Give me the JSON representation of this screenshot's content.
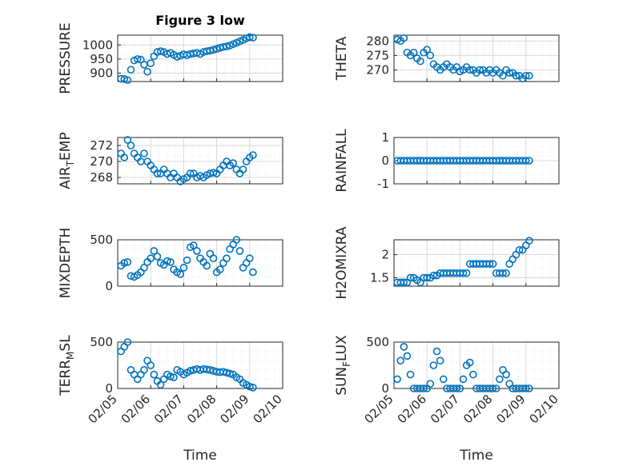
{
  "figure": {
    "title": "Figure 3 low",
    "xlabel": "Time",
    "x_ticks": [
      "02/05",
      "02/06",
      "02/07",
      "02/08",
      "02/09",
      "02/10"
    ],
    "x_range": [
      "02/05",
      "02/10"
    ],
    "marker": "open-circle",
    "series_color": "#0072BD",
    "grid_color": "#d9d9d9"
  },
  "chart_data": [
    {
      "type": "scatter",
      "id": "pressure",
      "ylabel": "PRESSURE",
      "ylim": [
        870,
        1035
      ],
      "yticks": [
        900,
        950,
        1000
      ],
      "grid": true,
      "x": [
        0.1,
        0.2,
        0.3,
        0.4,
        0.5,
        0.6,
        0.7,
        0.8,
        0.9,
        1.0,
        1.1,
        1.2,
        1.3,
        1.4,
        1.5,
        1.6,
        1.7,
        1.8,
        1.9,
        2.0,
        2.1,
        2.2,
        2.3,
        2.4,
        2.5,
        2.6,
        2.7,
        2.8,
        2.9,
        3.0,
        3.1,
        3.2,
        3.3,
        3.4,
        3.5,
        3.6,
        3.7,
        3.8,
        3.9,
        4.0,
        4.1
      ],
      "y": [
        880,
        879,
        875,
        912,
        945,
        950,
        948,
        930,
        905,
        935,
        960,
        975,
        978,
        975,
        968,
        972,
        965,
        958,
        962,
        967,
        964,
        968,
        970,
        972,
        968,
        975,
        978,
        980,
        983,
        986,
        990,
        993,
        995,
        998,
        1003,
        1008,
        1013,
        1018,
        1024,
        1028,
        1026
      ]
    },
    {
      "type": "scatter",
      "id": "theta",
      "ylabel": "THETA",
      "ylim": [
        266,
        282
      ],
      "yticks": [
        270,
        275,
        280
      ],
      "grid": true,
      "x": [
        0.1,
        0.2,
        0.3,
        0.4,
        0.5,
        0.6,
        0.7,
        0.8,
        0.9,
        1.0,
        1.1,
        1.2,
        1.3,
        1.4,
        1.5,
        1.6,
        1.7,
        1.8,
        1.9,
        2.0,
        2.1,
        2.2,
        2.3,
        2.4,
        2.5,
        2.6,
        2.7,
        2.8,
        2.9,
        3.0,
        3.1,
        3.2,
        3.3,
        3.4,
        3.5,
        3.6,
        3.7,
        3.8,
        3.9,
        4.0,
        4.1
      ],
      "y": [
        280.5,
        280,
        281,
        276,
        275,
        276,
        274,
        273,
        276,
        277,
        275,
        272,
        271,
        270,
        271,
        272,
        271,
        270,
        271,
        269.5,
        270,
        271,
        270,
        270,
        269,
        270,
        270,
        269,
        270,
        269,
        270,
        269,
        268,
        270,
        269,
        269,
        268,
        268,
        267,
        268,
        268
      ]
    },
    {
      "type": "scatter",
      "id": "air-temp",
      "ylabel": "AIR_TEMP",
      "ylabel_parts": [
        "AIR",
        "T",
        "EMP"
      ],
      "ylim": [
        267.2,
        273
      ],
      "yticks": [
        268,
        270,
        272
      ],
      "grid": true,
      "x": [
        0.1,
        0.2,
        0.3,
        0.4,
        0.5,
        0.6,
        0.7,
        0.8,
        0.9,
        1.0,
        1.1,
        1.2,
        1.3,
        1.4,
        1.5,
        1.6,
        1.7,
        1.8,
        1.9,
        2.0,
        2.1,
        2.2,
        2.3,
        2.4,
        2.5,
        2.6,
        2.7,
        2.8,
        2.9,
        3.0,
        3.1,
        3.2,
        3.3,
        3.4,
        3.5,
        3.6,
        3.7,
        3.8,
        3.9,
        4.0,
        4.1
      ],
      "y": [
        271,
        270.5,
        272.7,
        272,
        271,
        270.5,
        270,
        271,
        270,
        269.5,
        269,
        268.5,
        268.5,
        269,
        268.5,
        268,
        268.5,
        268,
        267.5,
        267.8,
        268,
        268.5,
        268.5,
        268,
        268.2,
        268,
        268.3,
        268.5,
        268.6,
        268.5,
        269,
        269.5,
        270,
        269.5,
        269.8,
        269,
        268.5,
        269,
        270,
        270.5,
        270.8
      ]
    },
    {
      "type": "scatter",
      "id": "rainfall",
      "ylabel": "RAINFALL",
      "ylim": [
        -1,
        1
      ],
      "yticks": [
        -1,
        0,
        1
      ],
      "grid": true,
      "x": [
        0.1,
        0.2,
        0.3,
        0.4,
        0.5,
        0.6,
        0.7,
        0.8,
        0.9,
        1.0,
        1.1,
        1.2,
        1.3,
        1.4,
        1.5,
        1.6,
        1.7,
        1.8,
        1.9,
        2.0,
        2.1,
        2.2,
        2.3,
        2.4,
        2.5,
        2.6,
        2.7,
        2.8,
        2.9,
        3.0,
        3.1,
        3.2,
        3.3,
        3.4,
        3.5,
        3.6,
        3.7,
        3.8,
        3.9,
        4.0,
        4.1
      ],
      "y": [
        0,
        0,
        0,
        0,
        0,
        0,
        0,
        0,
        0,
        0,
        0,
        0,
        0,
        0,
        0,
        0,
        0,
        0,
        0,
        0,
        0,
        0,
        0,
        0,
        0,
        0,
        0,
        0,
        0,
        0,
        0,
        0,
        0,
        0,
        0,
        0,
        0,
        0,
        0,
        0,
        0
      ]
    },
    {
      "type": "scatter",
      "id": "mixdepth",
      "ylabel": "MIXDEPTH",
      "ylim": [
        0,
        500
      ],
      "yticks": [
        0,
        500
      ],
      "grid": true,
      "x": [
        0.1,
        0.2,
        0.3,
        0.4,
        0.5,
        0.6,
        0.7,
        0.8,
        0.9,
        1.0,
        1.1,
        1.2,
        1.3,
        1.4,
        1.5,
        1.6,
        1.7,
        1.8,
        1.9,
        2.0,
        2.1,
        2.2,
        2.3,
        2.4,
        2.5,
        2.6,
        2.7,
        2.8,
        2.9,
        3.0,
        3.1,
        3.2,
        3.3,
        3.4,
        3.5,
        3.6,
        3.7,
        3.8,
        3.9,
        4.0,
        4.1
      ],
      "y": [
        220,
        250,
        260,
        110,
        100,
        120,
        150,
        200,
        260,
        300,
        380,
        320,
        250,
        230,
        270,
        260,
        180,
        150,
        130,
        200,
        280,
        420,
        440,
        380,
        300,
        260,
        220,
        350,
        300,
        150,
        180,
        250,
        300,
        400,
        450,
        500,
        380,
        200,
        250,
        300,
        150
      ]
    },
    {
      "type": "scatter",
      "id": "h2omixra",
      "ylabel": "H2OMIXRA",
      "ylim": [
        1.32,
        2.32
      ],
      "yticks": [
        1.5,
        2
      ],
      "grid": true,
      "x": [
        0.1,
        0.2,
        0.3,
        0.4,
        0.5,
        0.6,
        0.7,
        0.8,
        0.9,
        1.0,
        1.1,
        1.2,
        1.3,
        1.4,
        1.5,
        1.6,
        1.7,
        1.8,
        1.9,
        2.0,
        2.1,
        2.2,
        2.3,
        2.4,
        2.5,
        2.6,
        2.7,
        2.8,
        2.9,
        3.0,
        3.1,
        3.2,
        3.3,
        3.4,
        3.5,
        3.6,
        3.7,
        3.8,
        3.9,
        4.0,
        4.1
      ],
      "y": [
        1.4,
        1.4,
        1.4,
        1.4,
        1.5,
        1.5,
        1.45,
        1.4,
        1.5,
        1.5,
        1.5,
        1.55,
        1.55,
        1.6,
        1.6,
        1.6,
        1.6,
        1.6,
        1.6,
        1.6,
        1.6,
        1.6,
        1.8,
        1.8,
        1.8,
        1.8,
        1.8,
        1.8,
        1.8,
        1.8,
        1.6,
        1.6,
        1.6,
        1.6,
        1.8,
        1.9,
        2.0,
        2.1,
        2.1,
        2.2,
        2.3
      ]
    },
    {
      "type": "scatter",
      "id": "terr-msl",
      "ylabel": "TERR_MSL",
      "ylabel_parts": [
        "TERR",
        "M",
        "SL"
      ],
      "ylim": [
        0,
        500
      ],
      "yticks": [
        0,
        500
      ],
      "grid": true,
      "x": [
        0.1,
        0.2,
        0.3,
        0.4,
        0.5,
        0.6,
        0.7,
        0.8,
        0.9,
        1.0,
        1.1,
        1.2,
        1.3,
        1.4,
        1.5,
        1.6,
        1.7,
        1.8,
        1.9,
        2.0,
        2.1,
        2.2,
        2.3,
        2.4,
        2.5,
        2.6,
        2.7,
        2.8,
        2.9,
        3.0,
        3.1,
        3.2,
        3.3,
        3.4,
        3.5,
        3.6,
        3.7,
        3.8,
        3.9,
        4.0,
        4.1
      ],
      "y": [
        400,
        450,
        500,
        200,
        150,
        100,
        150,
        200,
        300,
        250,
        150,
        80,
        40,
        100,
        150,
        130,
        120,
        200,
        180,
        150,
        170,
        190,
        200,
        210,
        200,
        210,
        205,
        200,
        190,
        180,
        175,
        180,
        170,
        160,
        150,
        120,
        100,
        60,
        40,
        20,
        10
      ]
    },
    {
      "type": "scatter",
      "id": "sun-flux",
      "ylabel": "SUN_FLUX",
      "ylabel_parts": [
        "SUN",
        "F",
        "LUX"
      ],
      "ylim": [
        0,
        500
      ],
      "yticks": [
        0,
        500
      ],
      "grid": true,
      "x": [
        0.1,
        0.2,
        0.3,
        0.4,
        0.5,
        0.6,
        0.7,
        0.8,
        0.9,
        1.0,
        1.1,
        1.2,
        1.3,
        1.4,
        1.5,
        1.6,
        1.7,
        1.8,
        1.9,
        2.0,
        2.1,
        2.2,
        2.3,
        2.4,
        2.5,
        2.6,
        2.7,
        2.8,
        2.9,
        3.0,
        3.1,
        3.2,
        3.3,
        3.4,
        3.5,
        3.6,
        3.7,
        3.8,
        3.9,
        4.0,
        4.1
      ],
      "y": [
        100,
        300,
        450,
        350,
        150,
        0,
        0,
        0,
        0,
        0,
        50,
        250,
        400,
        300,
        100,
        0,
        0,
        0,
        0,
        0,
        100,
        250,
        280,
        150,
        0,
        0,
        0,
        0,
        0,
        0,
        0,
        100,
        200,
        150,
        50,
        0,
        0,
        0,
        0,
        0,
        0
      ]
    }
  ]
}
